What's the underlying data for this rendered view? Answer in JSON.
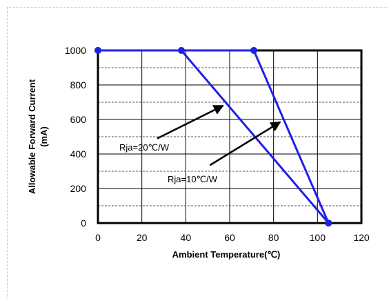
{
  "chart_data": {
    "type": "line",
    "xlabel": "Ambient  Temperature(℃)",
    "ylabel_line1": "Allowable  Forward Current",
    "ylabel_line2": "(mA)",
    "xlim": [
      0,
      120
    ],
    "ylim": [
      0,
      1000
    ],
    "xticks": [
      0,
      20,
      40,
      60,
      80,
      100,
      120
    ],
    "yticks": [
      0,
      200,
      400,
      600,
      800,
      1000
    ],
    "grid": true,
    "legend": "none",
    "series": [
      {
        "name": "Rja=20℃/W",
        "color": "#1f1fe6",
        "points": [
          [
            0,
            1000
          ],
          [
            38,
            1000
          ],
          [
            105,
            0
          ]
        ]
      },
      {
        "name": "Rja=10℃/W",
        "color": "#1f1fe6",
        "points": [
          [
            0,
            1000
          ],
          [
            71,
            1000
          ],
          [
            105,
            0
          ]
        ]
      }
    ],
    "annotations": [
      {
        "text": "Rja=20℃/W",
        "arrow_from": [
          27,
          490
        ],
        "arrow_to": [
          57,
          680
        ]
      },
      {
        "text": "Rja=10℃/W",
        "arrow_from": [
          51,
          335
        ],
        "arrow_to": [
          83,
          585
        ]
      }
    ]
  }
}
